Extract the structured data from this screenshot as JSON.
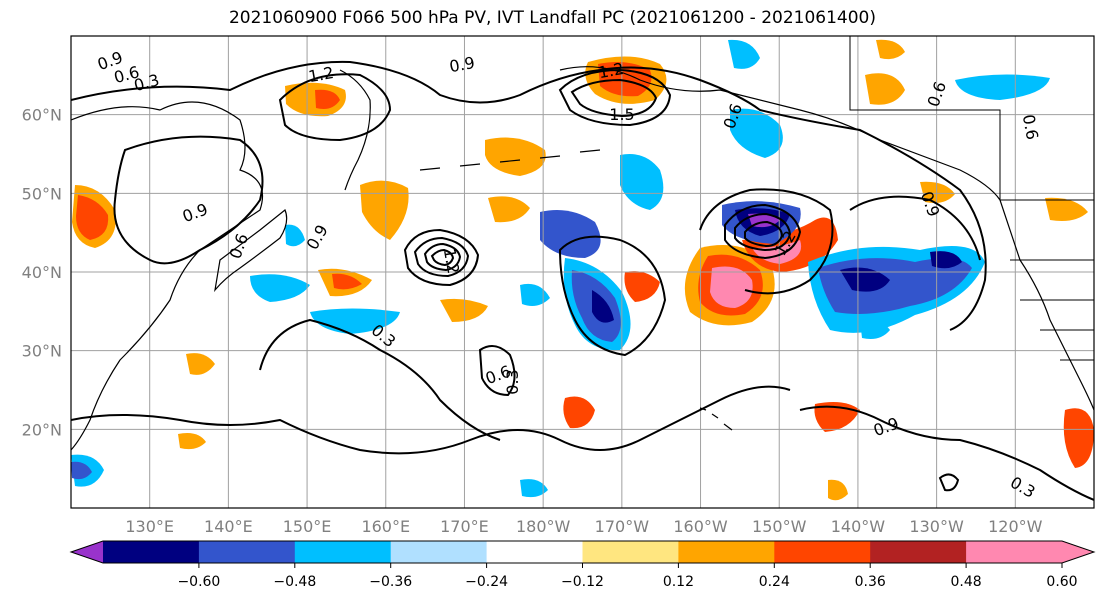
{
  "title": "2021060900 F066 500 hPa PV, IVT Landfall PC (2021061200 - 2021061400)",
  "map": {
    "lat_labels": [
      "60°N",
      "50°N",
      "40°N",
      "30°N",
      "20°N"
    ],
    "lat_values": [
      60,
      50,
      40,
      30,
      20
    ],
    "lon_labels": [
      "130°E",
      "140°E",
      "150°E",
      "160°E",
      "170°E",
      "180°W",
      "170°W",
      "160°W",
      "150°W",
      "140°W",
      "130°W",
      "120°W"
    ],
    "lon_values": [
      130,
      140,
      150,
      160,
      170,
      180,
      190,
      200,
      210,
      220,
      230,
      240
    ],
    "extent": {
      "lon_min": 120,
      "lon_max": 250,
      "lat_min": 10,
      "lat_max": 70
    },
    "contour_labels": [
      "0.9",
      "1.2",
      "0.6",
      "0.3",
      "0.9",
      "1.2",
      "1.5",
      "0.6",
      "0.9",
      "0.6",
      "0.9",
      "0.3",
      "0.6",
      "0.9",
      "0.3",
      "0.3",
      "0.9",
      "0.6",
      "1.2",
      "1.2",
      "0.6"
    ]
  },
  "colorbar": {
    "ticks": [
      "−0.60",
      "−0.48",
      "−0.36",
      "−0.24",
      "−0.12",
      "0.12",
      "0.24",
      "0.36",
      "0.48",
      "0.60"
    ],
    "colors": [
      "#9933cc",
      "#000080",
      "#3355cc",
      "#00bfff",
      "#b0e0ff",
      "#ffffff",
      "#ffe680",
      "#ffa500",
      "#ff4500",
      "#b22222",
      "#ff88b0",
      "#ff88b0"
    ]
  }
}
